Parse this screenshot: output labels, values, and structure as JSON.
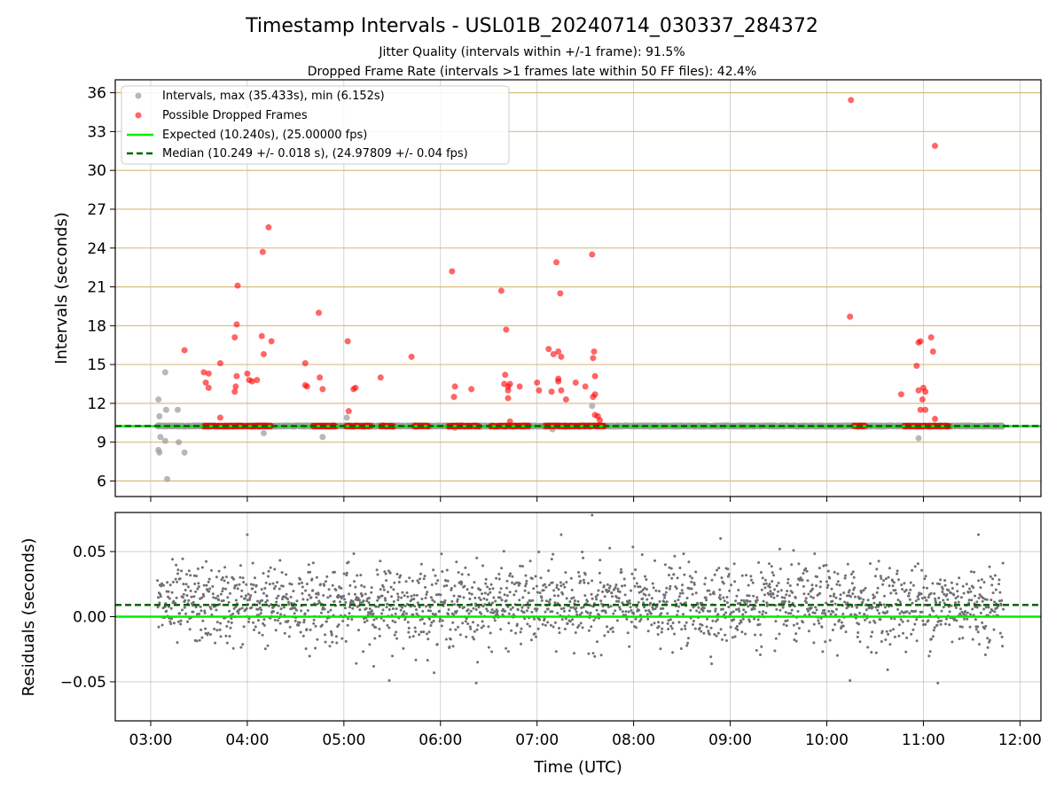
{
  "figure": {
    "title": "Timestamp Intervals - USL01B_20240714_030337_284372",
    "subtitle_1": "Jitter Quality (intervals within +/-1 frame): 91.5%",
    "subtitle_2": "Dropped Frame Rate (intervals >1 frames late within 50 FF files): 42.4%",
    "xlabel": "Time (UTC)"
  },
  "colors": {
    "intervals": "#a0a0a0",
    "dropped": "#ff0000",
    "expected": "#00ee00",
    "median": "#006400",
    "residuals": "#707070",
    "hgrid_top": "#d4b878",
    "grid": "#b0b0b0"
  },
  "chart_data": [
    {
      "type": "scatter",
      "panel": "top",
      "ylabel": "Intervals (seconds)",
      "xlim": [
        2.633,
        12.217
      ],
      "ylim": [
        4.8,
        37.0
      ],
      "x_ticks": [
        3,
        4,
        5,
        6,
        7,
        8,
        9,
        10,
        11,
        12
      ],
      "x_tick_labels": [
        "03:00",
        "04:00",
        "05:00",
        "06:00",
        "07:00",
        "08:00",
        "09:00",
        "10:00",
        "11:00",
        "12:00"
      ],
      "y_ticks": [
        6,
        9,
        12,
        15,
        18,
        21,
        24,
        27,
        30,
        33,
        36
      ],
      "y_tick_labels": [
        "6",
        "9",
        "12",
        "15",
        "18",
        "21",
        "24",
        "27",
        "30",
        "33",
        "36"
      ],
      "grid": true,
      "legend_position": "top-left",
      "legend": [
        "Intervals, max (35.433s), min (6.152s)",
        "Possible Dropped Frames",
        "Expected (10.240s), (25.00000 fps)",
        "Median (10.249 +/- 0.018 s), (24.97809 +/- 0.04 fps)"
      ],
      "expected_value": 10.24,
      "median_value": 10.249,
      "baseline_range": [
        3.07,
        11.82
      ],
      "dropped_baseline_segments": [
        [
          3.55,
          4.25
        ],
        [
          4.68,
          4.92
        ],
        [
          5.02,
          5.28
        ],
        [
          5.38,
          5.52
        ],
        [
          5.72,
          5.88
        ],
        [
          6.08,
          6.4
        ],
        [
          6.52,
          6.92
        ],
        [
          7.08,
          7.7
        ],
        [
          10.28,
          10.4
        ],
        [
          10.8,
          11.27
        ]
      ],
      "series": [
        {
          "name": "Intervals, max (35.433s), min (6.152s)",
          "points": [
            [
              3.08,
              12.3
            ],
            [
              3.09,
              11.0
            ],
            [
              3.1,
              9.4
            ],
            [
              3.08,
              8.4
            ],
            [
              3.09,
              8.2
            ],
            [
              3.15,
              14.4
            ],
            [
              3.16,
              11.5
            ],
            [
              3.15,
              9.1
            ],
            [
              3.17,
              6.152
            ],
            [
              3.28,
              11.5
            ],
            [
              3.29,
              9.0
            ],
            [
              3.35,
              8.2
            ],
            [
              4.17,
              9.7
            ],
            [
              4.78,
              9.4
            ],
            [
              5.03,
              10.9
            ],
            [
              6.15,
              10.1
            ],
            [
              7.16,
              10.0
            ],
            [
              7.57,
              11.8
            ],
            [
              10.95,
              9.3
            ]
          ]
        },
        {
          "name": "Possible Dropped Frames",
          "points": [
            [
              3.35,
              16.1
            ],
            [
              3.55,
              14.4
            ],
            [
              3.6,
              14.3
            ],
            [
              3.57,
              13.6
            ],
            [
              3.6,
              13.2
            ],
            [
              3.72,
              15.1
            ],
            [
              3.72,
              10.9
            ],
            [
              3.87,
              17.1
            ],
            [
              3.9,
              21.1
            ],
            [
              3.89,
              18.1
            ],
            [
              3.88,
              13.3
            ],
            [
              3.87,
              12.9
            ],
            [
              3.89,
              14.1
            ],
            [
              4.0,
              14.3
            ],
            [
              4.02,
              13.8
            ],
            [
              4.05,
              13.7
            ],
            [
              4.1,
              13.8
            ],
            [
              4.16,
              23.7
            ],
            [
              4.22,
              25.6
            ],
            [
              4.15,
              17.2
            ],
            [
              4.25,
              16.8
            ],
            [
              4.17,
              15.8
            ],
            [
              4.6,
              15.1
            ],
            [
              4.6,
              13.4
            ],
            [
              4.62,
              13.3
            ],
            [
              4.74,
              19.0
            ],
            [
              4.75,
              14.0
            ],
            [
              4.78,
              13.1
            ],
            [
              5.04,
              16.8
            ],
            [
              5.05,
              11.4
            ],
            [
              5.1,
              13.1
            ],
            [
              5.12,
              13.2
            ],
            [
              5.38,
              14.0
            ],
            [
              5.7,
              15.6
            ],
            [
              6.12,
              22.2
            ],
            [
              6.15,
              13.3
            ],
            [
              6.14,
              12.5
            ],
            [
              6.32,
              13.1
            ],
            [
              6.63,
              20.7
            ],
            [
              6.66,
              13.5
            ],
            [
              6.67,
              14.2
            ],
            [
              6.68,
              17.7
            ],
            [
              6.7,
              13.3
            ],
            [
              6.72,
              13.5
            ],
            [
              6.7,
              13.0
            ],
            [
              6.7,
              12.4
            ],
            [
              6.72,
              10.6
            ],
            [
              6.82,
              13.3
            ],
            [
              7.0,
              13.6
            ],
            [
              7.02,
              13.0
            ],
            [
              7.12,
              16.2
            ],
            [
              7.15,
              12.9
            ],
            [
              7.17,
              15.8
            ],
            [
              7.2,
              22.9
            ],
            [
              7.22,
              16.0
            ],
            [
              7.22,
              13.9
            ],
            [
              7.22,
              13.7
            ],
            [
              7.24,
              20.5
            ],
            [
              7.25,
              15.6
            ],
            [
              7.25,
              13.0
            ],
            [
              7.3,
              12.3
            ],
            [
              7.4,
              13.6
            ],
            [
              7.5,
              13.3
            ],
            [
              7.57,
              23.5
            ],
            [
              7.58,
              15.5
            ],
            [
              7.59,
              16.0
            ],
            [
              7.6,
              14.1
            ],
            [
              7.6,
              12.7
            ],
            [
              7.58,
              12.5
            ],
            [
              7.6,
              11.1
            ],
            [
              7.63,
              11.0
            ],
            [
              7.65,
              10.7
            ],
            [
              10.25,
              35.433
            ],
            [
              10.24,
              18.7
            ],
            [
              10.77,
              12.7
            ],
            [
              10.93,
              14.9
            ],
            [
              10.95,
              16.7
            ],
            [
              10.97,
              16.8
            ],
            [
              10.95,
              13.0
            ],
            [
              10.97,
              11.5
            ],
            [
              10.99,
              12.3
            ],
            [
              11.0,
              13.2
            ],
            [
              11.02,
              11.5
            ],
            [
              11.02,
              12.9
            ],
            [
              11.08,
              17.1
            ],
            [
              11.1,
              16.0
            ],
            [
              11.12,
              31.9
            ],
            [
              11.12,
              10.8
            ]
          ]
        }
      ]
    },
    {
      "type": "scatter",
      "panel": "bottom",
      "ylabel": "Residuals (seconds)",
      "xlim": [
        2.633,
        12.217
      ],
      "ylim": [
        -0.08,
        0.08
      ],
      "y_ticks": [
        -0.05,
        0.0,
        0.05
      ],
      "y_tick_labels": [
        "−0.05",
        "0.00",
        "0.05"
      ],
      "grid": true,
      "expected_value": 0.0,
      "median_value": 0.009,
      "series": [
        {
          "name": "Residuals",
          "x_range": [
            3.07,
            11.83
          ],
          "center": 0.009,
          "spread": 0.015,
          "range": [
            -0.051,
            0.078
          ],
          "outliers": [
            [
              7.57,
              0.078
            ],
            [
              4.0,
              0.063
            ],
            [
              7.25,
              0.063
            ],
            [
              11.57,
              0.063
            ],
            [
              8.9,
              0.06
            ],
            [
              5.47,
              -0.049
            ],
            [
              6.37,
              -0.051
            ],
            [
              10.24,
              -0.049
            ],
            [
              11.15,
              -0.051
            ]
          ]
        }
      ]
    }
  ]
}
